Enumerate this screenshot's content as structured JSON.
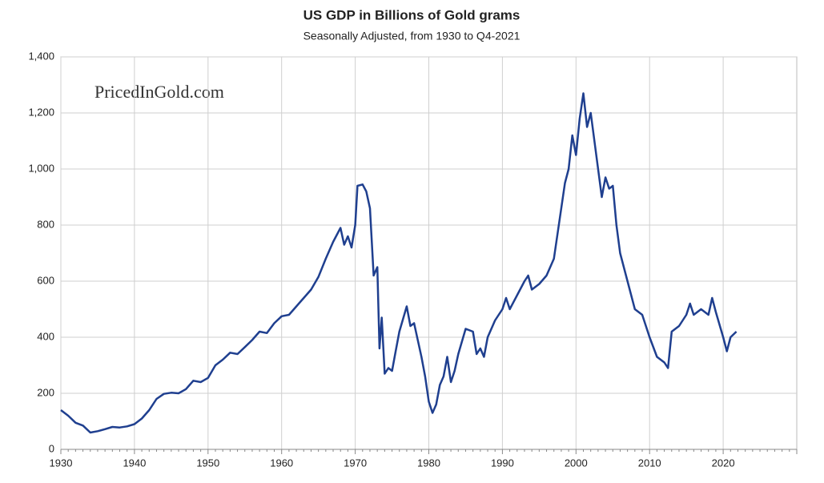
{
  "chart_data": {
    "type": "line",
    "title": "US GDP in Billions of Gold grams",
    "subtitle": "Seasonally Adjusted, from 1930 to Q4-2021",
    "annotation": "PricedInGold.com",
    "xlim": [
      1930,
      2030
    ],
    "xticks": [
      1930,
      1940,
      1950,
      1960,
      1970,
      1980,
      1990,
      2000,
      2010,
      2020
    ],
    "ylim": [
      0,
      1400
    ],
    "yticks": [
      0,
      200,
      400,
      600,
      800,
      {
        "value": 1000,
        "label": "1,000"
      },
      {
        "value": 1200,
        "label": "1,200"
      },
      {
        "value": 1400,
        "label": "1,400"
      }
    ],
    "grid": true,
    "x": [
      1930,
      1931,
      1932,
      1933,
      1934,
      1935,
      1936,
      1937,
      1938,
      1939,
      1940,
      1941,
      1942,
      1943,
      1944,
      1945,
      1946,
      1947,
      1948,
      1949,
      1950,
      1951,
      1952,
      1953,
      1954,
      1955,
      1956,
      1957,
      1958,
      1959,
      1960,
      1961,
      1962,
      1963,
      1964,
      1965,
      1966,
      1967,
      1968,
      1968.5,
      1969,
      1969.5,
      1970,
      1970.3,
      1971,
      1971.5,
      1972,
      1972.5,
      1973,
      1973.3,
      1973.6,
      1974,
      1974.5,
      1975,
      1975.5,
      1976,
      1977,
      1977.5,
      1978,
      1978.5,
      1979,
      1979.5,
      1980,
      1980.5,
      1981,
      1981.5,
      1982,
      1982.5,
      1983,
      1983.5,
      1984,
      1985,
      1986,
      1986.5,
      1987,
      1987.5,
      1988,
      1989,
      1990,
      1990.5,
      1991,
      1992,
      1993,
      1993.5,
      1994,
      1995,
      1996,
      1997,
      1998,
      1998.5,
      1999,
      1999.5,
      2000,
      2000.5,
      2001,
      2001.5,
      2002,
      2002.5,
      2003,
      2003.5,
      2004,
      2004.5,
      2005,
      2005.5,
      2006,
      2007,
      2008,
      2009,
      2010,
      2011,
      2012,
      2012.5,
      2013,
      2014,
      2015,
      2015.5,
      2016,
      2017,
      2018,
      2018.5,
      2019,
      2020,
      2020.5,
      2021,
      2021.8
    ],
    "series": [
      {
        "name": "US GDP",
        "color": "#1f3f8f",
        "values": [
          140,
          120,
          95,
          85,
          60,
          65,
          72,
          80,
          78,
          82,
          90,
          110,
          140,
          180,
          198,
          202,
          200,
          215,
          245,
          240,
          255,
          300,
          320,
          345,
          340,
          365,
          390,
          420,
          415,
          450,
          475,
          480,
          510,
          540,
          570,
          615,
          680,
          740,
          790,
          730,
          760,
          720,
          800,
          940,
          945,
          920,
          860,
          620,
          650,
          360,
          470,
          270,
          290,
          280,
          350,
          420,
          510,
          440,
          450,
          390,
          330,
          260,
          170,
          130,
          160,
          230,
          260,
          330,
          240,
          280,
          340,
          430,
          420,
          340,
          360,
          330,
          400,
          460,
          500,
          540,
          500,
          550,
          600,
          620,
          570,
          590,
          620,
          680,
          860,
          950,
          1000,
          1120,
          1050,
          1180,
          1270,
          1150,
          1200,
          1100,
          1000,
          900,
          970,
          930,
          940,
          800,
          700,
          600,
          500,
          480,
          400,
          330,
          310,
          290,
          420,
          440,
          480,
          520,
          480,
          500,
          480,
          540,
          490,
          400,
          350,
          400,
          420
        ]
      }
    ]
  }
}
